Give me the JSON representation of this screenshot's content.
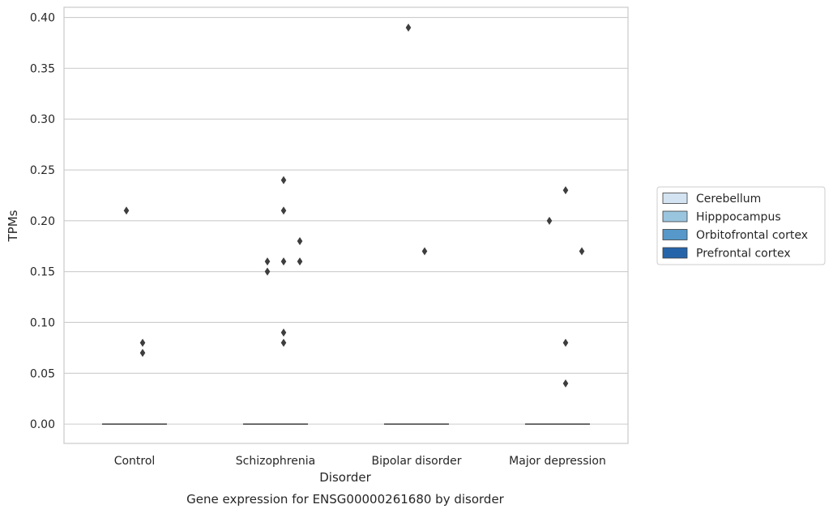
{
  "chart_data": {
    "type": "box",
    "title": "Gene expression for ENSG00000261680 by disorder",
    "xlabel": "Disorder",
    "ylabel": "TPMs",
    "ylim": [
      -0.019,
      0.41
    ],
    "yticks": [
      "0.00",
      "0.05",
      "0.10",
      "0.15",
      "0.20",
      "0.25",
      "0.30",
      "0.35",
      "0.40"
    ],
    "ytick_values": [
      0,
      0.05,
      0.1,
      0.15,
      0.2,
      0.25,
      0.3,
      0.35,
      0.4
    ],
    "grid": "horizontal",
    "legend_position": "right",
    "categories": [
      "Control",
      "Schizophrenia",
      "Bipolar disorder",
      "Major depression"
    ],
    "series": [
      {
        "name": "Cerebellum",
        "color": "#d3e3f2",
        "median": [
          0,
          0,
          0,
          0
        ],
        "outliers": [
          [],
          [],
          [],
          []
        ]
      },
      {
        "name": "Hipppocampus",
        "color": "#9ac5df",
        "median": [
          0,
          0,
          0,
          0
        ],
        "outliers": [
          [
            0.21
          ],
          [
            0.15,
            0.16
          ],
          [
            0.39
          ],
          [
            0.2
          ]
        ]
      },
      {
        "name": "Orbitofrontal cortex",
        "color": "#5598c9",
        "median": [
          0,
          0,
          0,
          0
        ],
        "outliers": [
          [
            0.08,
            0.07
          ],
          [
            0.24,
            0.16,
            0.21,
            0.09,
            0.08
          ],
          [
            0.17
          ],
          [
            0.23,
            0.08,
            0.04
          ]
        ]
      },
      {
        "name": "Prefrontal cortex",
        "color": "#2564a9",
        "median": [
          0,
          0,
          0,
          0
        ],
        "outliers": [
          [],
          [
            0.18,
            0.16
          ],
          [],
          [
            0.17
          ]
        ]
      }
    ],
    "colors": {
      "grid": "#cccccc",
      "frame": "#cccccc",
      "outlier": "#3d3d3d",
      "median": "#3d3d3d"
    }
  }
}
